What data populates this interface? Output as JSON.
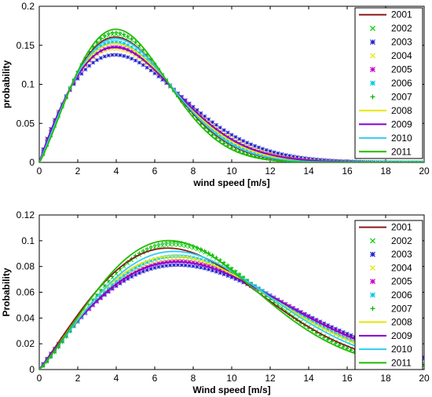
{
  "chart_data": [
    {
      "type": "line",
      "xlabel": "wind speed [m/s]",
      "ylabel": "probability",
      "xlim": [
        0,
        20
      ],
      "ylim": [
        0,
        0.2
      ],
      "xticks": [
        "0",
        "2",
        "4",
        "6",
        "8",
        "10",
        "12",
        "14",
        "16",
        "18",
        "20"
      ],
      "yticks": [
        "0",
        "0.05",
        "0.1",
        "0.15",
        "0.2"
      ],
      "grid": false,
      "legend_placement": "right",
      "series": [
        {
          "name": "2001",
          "style": "line",
          "color": "#8b1a1a",
          "k": 2.06,
          "c": 5.45
        },
        {
          "name": "2002",
          "style": "marker-x",
          "color": "#00d000",
          "k": 2.1,
          "c": 5.4
        },
        {
          "name": "2003",
          "style": "marker-star",
          "color": "#2020d0",
          "k": 1.86,
          "c": 5.95
        },
        {
          "name": "2004",
          "style": "marker-x",
          "color": "#e6e600",
          "k": 1.92,
          "c": 5.75
        },
        {
          "name": "2005",
          "style": "marker-star",
          "color": "#cc00cc",
          "k": 1.95,
          "c": 5.7
        },
        {
          "name": "2006",
          "style": "marker-star",
          "color": "#00c8e6",
          "k": 2.0,
          "c": 5.55
        },
        {
          "name": "2007",
          "style": "marker-plus",
          "color": "#00b000",
          "k": 2.12,
          "c": 5.35
        },
        {
          "name": "2008",
          "style": "line",
          "color": "#e6e600",
          "k": 1.98,
          "c": 5.6
        },
        {
          "name": "2009",
          "style": "line",
          "color": "#8000cc",
          "k": 1.94,
          "c": 5.7
        },
        {
          "name": "2010",
          "style": "line",
          "color": "#33ccee",
          "k": 2.05,
          "c": 5.5
        },
        {
          "name": "2011",
          "style": "line",
          "color": "#22bb00",
          "k": 2.16,
          "c": 5.3
        }
      ]
    },
    {
      "type": "line",
      "xlabel": "Wind speed [m/s]",
      "ylabel": "Probability",
      "xlim": [
        0,
        20
      ],
      "ylim": [
        0,
        0.12
      ],
      "xticks": [
        "0",
        "2",
        "4",
        "6",
        "8",
        "10",
        "12",
        "14",
        "16",
        "18",
        "20"
      ],
      "yticks": [
        "0",
        "0.02",
        "0.04",
        "0.06",
        "0.08",
        "0.1",
        "0.12"
      ],
      "grid": false,
      "legend_placement": "right",
      "series": [
        {
          "name": "2001",
          "style": "line",
          "color": "#8b1a1a",
          "k": 2.05,
          "c": 9.25
        },
        {
          "name": "2002",
          "style": "marker-x",
          "color": "#00d000",
          "k": 2.15,
          "c": 9.3
        },
        {
          "name": "2003",
          "style": "marker-star",
          "color": "#2020d0",
          "k": 1.95,
          "c": 10.4
        },
        {
          "name": "2004",
          "style": "marker-x",
          "color": "#e6e600",
          "k": 2.0,
          "c": 10.1
        },
        {
          "name": "2005",
          "style": "marker-star",
          "color": "#cc00cc",
          "k": 2.0,
          "c": 10.2
        },
        {
          "name": "2006",
          "style": "marker-star",
          "color": "#00c8e6",
          "k": 2.05,
          "c": 9.9
        },
        {
          "name": "2007",
          "style": "marker-plus",
          "color": "#00b000",
          "k": 2.18,
          "c": 9.2
        },
        {
          "name": "2008",
          "style": "line",
          "color": "#e6e600",
          "k": 2.02,
          "c": 9.8
        },
        {
          "name": "2009",
          "style": "line",
          "color": "#8000cc",
          "k": 1.98,
          "c": 10.2
        },
        {
          "name": "2010",
          "style": "line",
          "color": "#33ccee",
          "k": 2.08,
          "c": 9.6
        },
        {
          "name": "2011",
          "style": "line",
          "color": "#22bb00",
          "k": 2.15,
          "c": 9.0
        }
      ]
    }
  ]
}
